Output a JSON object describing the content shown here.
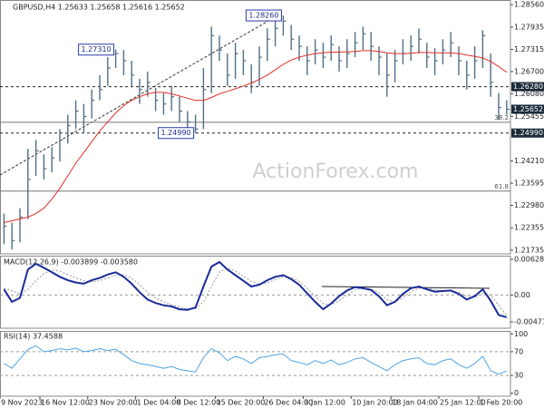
{
  "chart_data": [
    {
      "type": "hlc",
      "title": "GBPUSD,H4 1.25633 1.25658 1.25616 1.25652",
      "watermark": "ActionForex.com",
      "color": "#4f6f86",
      "categories": [
        "9 Nov 2023",
        null,
        null,
        null,
        null,
        "16 Nov 12:00",
        null,
        null,
        null,
        null,
        null,
        "23 Nov 20:00",
        null,
        null,
        null,
        null,
        null,
        "1 Dec 04:00",
        null,
        null,
        null,
        null,
        "8 Dec 12:00",
        null,
        null,
        null,
        null,
        "15 Dec 20:00",
        null,
        null,
        null,
        null,
        null,
        "26 Dec 04:00",
        null,
        null,
        null,
        null,
        "3 Jan 12:00",
        null,
        null,
        null,
        null,
        null,
        "10 Jan 20:00",
        null,
        null,
        null,
        null,
        "18 Jan 04:00",
        null,
        null,
        null,
        null,
        null,
        "25 Jan 12:00",
        null,
        null,
        null,
        null,
        "1 Feb 20:00",
        null,
        null,
        null
      ],
      "high": [
        1.2275,
        1.225,
        1.229,
        1.2455,
        1.248,
        1.244,
        1.246,
        1.251,
        1.255,
        1.259,
        1.258,
        1.262,
        1.266,
        1.271,
        1.2731,
        1.273,
        1.27,
        1.265,
        1.267,
        1.2625,
        1.261,
        1.263,
        1.26,
        1.256,
        1.255,
        1.268,
        1.2795,
        1.277,
        1.272,
        1.275,
        1.273,
        1.269,
        1.274,
        1.279,
        1.281,
        1.2826,
        1.28,
        1.277,
        1.274,
        1.276,
        1.275,
        1.277,
        1.274,
        1.276,
        1.278,
        1.2795,
        1.278,
        1.274,
        1.272,
        1.273,
        1.276,
        1.277,
        1.279,
        1.275,
        1.2735,
        1.276,
        1.278,
        1.274,
        1.27,
        1.274,
        1.2785,
        1.272,
        1.261,
        1.259
      ],
      "low": [
        1.219,
        1.2175,
        1.2195,
        1.226,
        1.238,
        1.237,
        1.239,
        1.242,
        1.247,
        1.251,
        1.25,
        1.254,
        1.259,
        1.263,
        1.268,
        1.266,
        1.263,
        1.258,
        1.26,
        1.256,
        1.255,
        1.256,
        1.253,
        1.251,
        1.2499,
        1.251,
        1.261,
        1.27,
        1.263,
        1.265,
        1.266,
        1.261,
        1.263,
        1.27,
        1.274,
        1.277,
        1.273,
        1.27,
        1.266,
        1.269,
        1.268,
        1.27,
        1.267,
        1.268,
        1.271,
        1.273,
        1.27,
        1.266,
        1.26,
        1.264,
        1.269,
        1.27,
        1.272,
        1.268,
        1.266,
        1.269,
        1.271,
        1.266,
        1.262,
        1.265,
        1.268,
        1.26,
        1.2535,
        1.255
      ],
      "close": [
        1.224,
        1.22,
        1.2265,
        1.237,
        1.245,
        1.24,
        1.243,
        1.248,
        1.252,
        1.256,
        1.2545,
        1.259,
        1.262,
        1.268,
        1.272,
        1.27,
        1.266,
        1.262,
        1.264,
        1.259,
        1.258,
        1.26,
        1.256,
        1.253,
        1.251,
        1.262,
        1.277,
        1.273,
        1.266,
        1.272,
        1.27,
        1.264,
        1.271,
        1.276,
        1.279,
        1.281,
        1.276,
        1.274,
        1.27,
        1.273,
        1.271,
        1.2745,
        1.27,
        1.272,
        1.275,
        1.2775,
        1.274,
        1.271,
        1.266,
        1.27,
        1.272,
        1.274,
        1.276,
        1.271,
        1.27,
        1.273,
        1.275,
        1.27,
        1.266,
        1.27,
        1.277,
        1.264,
        1.257,
        1.2565
      ],
      "moving_average": {
        "color": "#e0302a",
        "values": [
          1.225,
          1.2255,
          1.226,
          1.2265,
          1.2275,
          1.229,
          1.2315,
          1.2345,
          1.238,
          1.2415,
          1.2445,
          1.2475,
          1.2505,
          1.253,
          1.2555,
          1.2575,
          1.259,
          1.26,
          1.2608,
          1.2612,
          1.2612,
          1.2608,
          1.2602,
          1.2596,
          1.259,
          1.259,
          1.2598,
          1.2608,
          1.2615,
          1.2622,
          1.263,
          1.2638,
          1.2648,
          1.266,
          1.2675,
          1.269,
          1.2702,
          1.271,
          1.2716,
          1.272,
          1.2722,
          1.2724,
          1.2724,
          1.2725,
          1.2726,
          1.2728,
          1.2728,
          1.2726,
          1.2722,
          1.272,
          1.272,
          1.2721,
          1.2723,
          1.2723,
          1.2722,
          1.2722,
          1.2722,
          1.272,
          1.2716,
          1.2712,
          1.2708,
          1.2698,
          1.2684,
          1.2668
        ]
      },
      "ylim": [
        1.2163,
        1.2869
      ],
      "yticks": [
        {
          "value": 1.2856,
          "label": "1.28560"
        },
        1.27935,
        1.27315,
        {
          "value": 1.267,
          "label": "1.26700"
        },
        {
          "value": 1.2608,
          "label": "1.26080"
        },
        1.25455,
        {
          "value": 1.2421,
          "label": "1.24210"
        },
        1.23595,
        {
          "value": 1.2298,
          "label": "1.22980"
        },
        1.22355,
        1.21735
      ],
      "levels": [
        {
          "value": 1.2628,
          "label": "1.26280"
        },
        {
          "value": 1.2499,
          "label": "1.24990"
        }
      ],
      "fibonacci": [
        {
          "ratio": 38.2,
          "price": 1.2529
        },
        {
          "ratio": 61.8,
          "price": 1.23375
        }
      ],
      "last_price": {
        "value": 1.25652,
        "label": "1.25652"
      },
      "annotations": [
        {
          "value": 1.2826,
          "label": "1.28260",
          "index": 35
        },
        {
          "value": 1.2731,
          "label": "1.27310",
          "index": 14
        },
        {
          "value": 1.2499,
          "label": "1.24990",
          "index": 24
        }
      ],
      "grid": false
    },
    {
      "type": "macd",
      "title": "MACD(12,26,9) -0.003899 -0.003580",
      "macd": {
        "color": "#1a2a9a",
        "values": [
          0.001,
          -0.0012,
          -0.0005,
          0.0045,
          0.0055,
          0.0048,
          0.004,
          0.0032,
          0.0026,
          0.0022,
          0.002,
          0.0026,
          0.003,
          0.0036,
          0.004,
          0.0032,
          0.002,
          0.0005,
          -0.0008,
          -0.0014,
          -0.0018,
          -0.002,
          -0.0025,
          -0.0026,
          -0.0022,
          0.0015,
          0.005,
          0.0058,
          0.0045,
          0.0035,
          0.0025,
          0.0015,
          0.0018,
          0.0026,
          0.0032,
          0.0035,
          0.0028,
          0.0018,
          0.0003,
          -0.0012,
          -0.0025,
          -0.0015,
          -0.0002,
          0.0008,
          0.0014,
          0.0012,
          0.0009,
          -0.0002,
          -0.0018,
          -0.0012,
          0.0002,
          0.0012,
          0.0015,
          0.001,
          0.0006,
          0.0007,
          0.0008,
          0.0002,
          -0.0008,
          -0.0002,
          0.001,
          -0.001,
          -0.0035,
          -0.003899
        ]
      },
      "signal": {
        "color": "#999999",
        "values": [
          0.0012,
          0.0008,
          0.0002,
          0.001,
          0.0025,
          0.0038,
          0.0044,
          0.0042,
          0.0036,
          0.003,
          0.0025,
          0.0023,
          0.0025,
          0.003,
          0.0035,
          0.0036,
          0.003,
          0.0018,
          0.0005,
          -0.0005,
          -0.0012,
          -0.0017,
          -0.0021,
          -0.0024,
          -0.0024,
          -0.0012,
          0.0015,
          0.004,
          0.0048,
          0.0042,
          0.0033,
          0.0024,
          0.0019,
          0.0021,
          0.0027,
          0.0032,
          0.0031,
          0.0024,
          0.0012,
          -0.0002,
          -0.0015,
          -0.0017,
          -0.001,
          0.0,
          0.0009,
          0.0012,
          0.0011,
          0.0004,
          -0.0008,
          -0.0012,
          -0.0005,
          0.0006,
          0.0012,
          0.0012,
          0.0009,
          0.0007,
          0.0007,
          0.0005,
          -0.0002,
          -0.0004,
          0.0003,
          0.0,
          -0.0018,
          -0.00358
        ]
      },
      "ylim": [
        -0.00583,
        0.00692
      ],
      "yticks": [
        0.006281,
        {
          "value": 0,
          "label": "0.00"
        },
        -0.004711
      ],
      "grid": true
    },
    {
      "type": "rsi",
      "title": "RSI(14) 37.4588",
      "color": "#4da3e6",
      "values": [
        50,
        42,
        58,
        74,
        80,
        70,
        72,
        75,
        73,
        76,
        70,
        72,
        75,
        72,
        74,
        65,
        55,
        50,
        48,
        45,
        42,
        45,
        40,
        38,
        36,
        60,
        75,
        68,
        55,
        62,
        58,
        50,
        60,
        62,
        65,
        66,
        55,
        52,
        48,
        55,
        50,
        56,
        48,
        52,
        58,
        60,
        52,
        45,
        38,
        48,
        55,
        58,
        60,
        50,
        48,
        55,
        58,
        48,
        42,
        50,
        62,
        38,
        32,
        37.4588
      ],
      "ylim": [
        -5,
        105
      ],
      "yticks": [
        100,
        70,
        30,
        0
      ],
      "grid": true
    }
  ]
}
